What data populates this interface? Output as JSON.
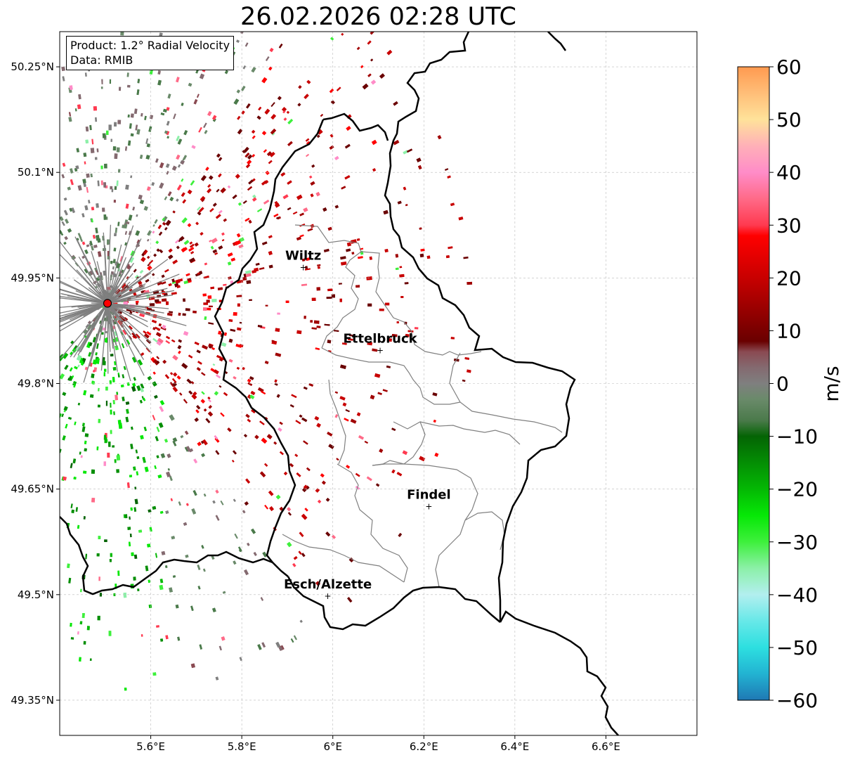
{
  "title": "26.02.2026 02:28 UTC",
  "infobox": {
    "product_line": "Product: 1.2° Radial Velocity",
    "data_line": "Data: RMIB"
  },
  "map": {
    "lon_range": [
      5.4,
      6.8
    ],
    "lat_range": [
      49.3,
      50.3
    ],
    "x_ticks": [
      {
        "value": 5.6,
        "label": "5.6°E"
      },
      {
        "value": 5.8,
        "label": "5.8°E"
      },
      {
        "value": 6.0,
        "label": "6°E"
      },
      {
        "value": 6.2,
        "label": "6.2°E"
      },
      {
        "value": 6.4,
        "label": "6.4°E"
      },
      {
        "value": 6.6,
        "label": "6.6°E"
      }
    ],
    "y_ticks": [
      {
        "value": 50.25,
        "label": "50.25°N"
      },
      {
        "value": 50.1,
        "label": "50.1°N"
      },
      {
        "value": 49.95,
        "label": "49.95°N"
      },
      {
        "value": 49.8,
        "label": "49.8°N"
      },
      {
        "value": 49.65,
        "label": "49.65°N"
      },
      {
        "value": 49.5,
        "label": "49.5°N"
      },
      {
        "value": 49.35,
        "label": "49.35°N"
      }
    ],
    "radar_site": {
      "lon": 5.505,
      "lat": 49.914
    },
    "cities": [
      {
        "name": "Wiltz",
        "lon": 5.935,
        "lat": 49.966
      },
      {
        "name": "Ettelbruck",
        "lon": 6.104,
        "lat": 49.848
      },
      {
        "name": "Findel",
        "lon": 6.211,
        "lat": 49.626
      },
      {
        "name": "Esch/Alzette",
        "lon": 5.989,
        "lat": 49.499
      }
    ]
  },
  "colorbar": {
    "label": "m/s",
    "min": -60,
    "max": 60,
    "ticks": [
      {
        "value": 60,
        "label": "60"
      },
      {
        "value": 50,
        "label": "50"
      },
      {
        "value": 40,
        "label": "40"
      },
      {
        "value": 30,
        "label": "30"
      },
      {
        "value": 20,
        "label": "20"
      },
      {
        "value": 10,
        "label": "10"
      },
      {
        "value": 0,
        "label": "0"
      },
      {
        "value": -10,
        "label": "−10"
      },
      {
        "value": -20,
        "label": "−20"
      },
      {
        "value": -30,
        "label": "−30"
      },
      {
        "value": -40,
        "label": "−40"
      },
      {
        "value": -50,
        "label": "−50"
      },
      {
        "value": -60,
        "label": "−60"
      }
    ],
    "stops": [
      {
        "v": -60,
        "c": "#1f78b4"
      },
      {
        "v": -55,
        "c": "#22b3d2"
      },
      {
        "v": -50,
        "c": "#2ddfe0"
      },
      {
        "v": -45,
        "c": "#67e8e8"
      },
      {
        "v": -40,
        "c": "#b2efef"
      },
      {
        "v": -35,
        "c": "#8cf0a8"
      },
      {
        "v": -30,
        "c": "#3ef03c"
      },
      {
        "v": -25,
        "c": "#06e806"
      },
      {
        "v": -20,
        "c": "#04b804"
      },
      {
        "v": -15,
        "c": "#048e04"
      },
      {
        "v": -10,
        "c": "#046404"
      },
      {
        "v": -7,
        "c": "#4a7a4a"
      },
      {
        "v": -3,
        "c": "#6a8a6a"
      },
      {
        "v": 0,
        "c": "#7f7f7f"
      },
      {
        "v": 3,
        "c": "#846a70"
      },
      {
        "v": 6,
        "c": "#8a4a52"
      },
      {
        "v": 8,
        "c": "#6a0000"
      },
      {
        "v": 15,
        "c": "#a00000"
      },
      {
        "v": 20,
        "c": "#c80000"
      },
      {
        "v": 28,
        "c": "#ff0000"
      },
      {
        "v": 30,
        "c": "#ff3a50"
      },
      {
        "v": 35,
        "c": "#ff6a88"
      },
      {
        "v": 40,
        "c": "#ff8cc8"
      },
      {
        "v": 45,
        "c": "#ffb0b8"
      },
      {
        "v": 50,
        "c": "#ffe29a"
      },
      {
        "v": 55,
        "c": "#ffbe78"
      },
      {
        "v": 60,
        "c": "#ff9a50"
      }
    ]
  },
  "colors": {
    "radar_site": "#ff0000",
    "border": "#000000",
    "canton": "#808080",
    "grid": "#bbbbbb"
  }
}
